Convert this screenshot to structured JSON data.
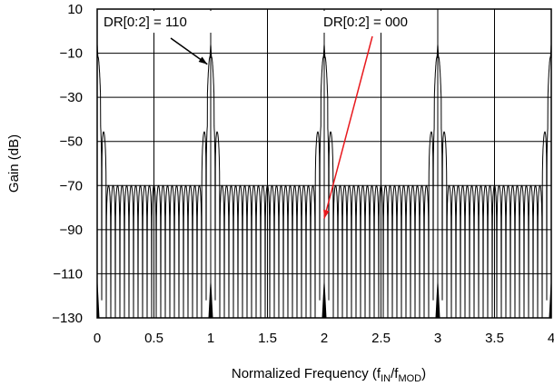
{
  "chart_data": {
    "type": "line",
    "title": "",
    "xlabel_parts": {
      "base": "Normalized Frequency (f",
      "sub1": "IN",
      "mid": "/f",
      "sub2": "MOD",
      "end": ")"
    },
    "ylabel": "Gain (dB)",
    "xlim": [
      0,
      4
    ],
    "ylim": [
      -130,
      10
    ],
    "x_ticks": [
      0,
      0.5,
      1,
      1.5,
      2,
      2.5,
      3,
      3.5,
      4
    ],
    "x_tick_labels": [
      "0",
      "0.5",
      "1",
      "1.5",
      "2",
      "2.5",
      "3",
      "3.5",
      "4"
    ],
    "y_ticks": [
      10,
      -10,
      -30,
      -50,
      -70,
      -90,
      -110,
      -130
    ],
    "y_tick_labels": [
      "10",
      "−10",
      "−30",
      "−50",
      "−70",
      "−90",
      "−110",
      "−130"
    ],
    "grid": true,
    "series": [
      {
        "label_text": "DR[0:2] = 110",
        "color": "#000000",
        "main_lobe_peaks_x": [
          0,
          1,
          2,
          3,
          4
        ],
        "main_lobe_peak_db": 0,
        "side_lobe_peak_db": -40,
        "floor_peak_db": -70,
        "notch_spacing": 0.04,
        "annotation_target": {
          "x": 0.97,
          "y": -15
        }
      },
      {
        "label_text": "DR[0:2] = 000",
        "color": "#e8191e",
        "notch_spacing": 0.008,
        "annotation_target": {
          "x": 2.0,
          "y": -85
        }
      }
    ]
  }
}
